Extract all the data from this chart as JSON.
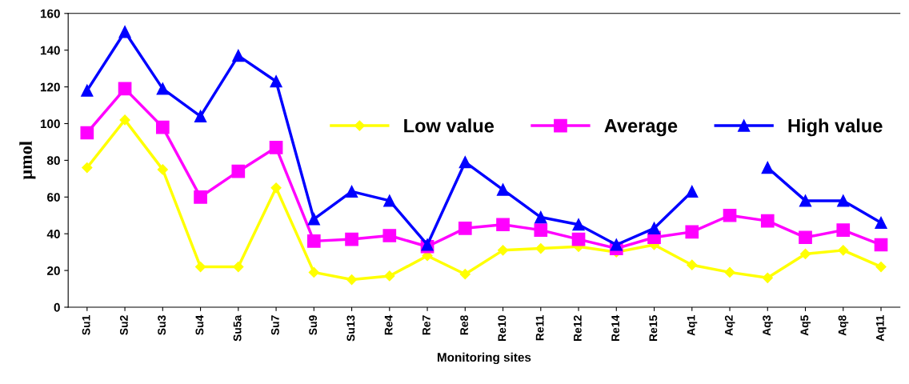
{
  "chart_data": {
    "type": "line",
    "xlabel": "Monitoring sites",
    "ylabel": "µmol",
    "categories": [
      "Su1",
      "Su2",
      "Su3",
      "Su4",
      "Su5a",
      "Su7",
      "Su9",
      "Su13",
      "Re4",
      "Re7",
      "Re8",
      "Re10",
      "Re11",
      "Re12",
      "Re14",
      "Re15",
      "Aq1",
      "Aq2",
      "Aq3",
      "Aq5",
      "Aq8",
      "Aq11"
    ],
    "series": [
      {
        "name": "Low value",
        "color": "#ffff00",
        "marker": "diamond",
        "values": [
          76,
          102,
          75,
          22,
          22,
          65,
          19,
          15,
          17,
          28,
          18,
          31,
          32,
          33,
          30,
          34,
          23,
          19,
          16,
          29,
          31,
          22
        ]
      },
      {
        "name": "Average",
        "color": "#ff00ff",
        "marker": "square",
        "values": [
          95,
          119,
          98,
          60,
          74,
          87,
          36,
          37,
          39,
          33,
          43,
          45,
          42,
          37,
          32,
          38,
          41,
          50,
          47,
          38,
          42,
          34
        ]
      },
      {
        "name": "High value",
        "color": "#0000ff",
        "marker": "triangle",
        "values": [
          118,
          150,
          119,
          104,
          137,
          123,
          48,
          63,
          58,
          34,
          79,
          64,
          49,
          45,
          34,
          43,
          63,
          null,
          76,
          58,
          58,
          46
        ]
      }
    ],
    "ylim": [
      0,
      160
    ],
    "yticks": [
      0,
      20,
      40,
      60,
      80,
      100,
      120,
      140,
      160
    ],
    "grid": false,
    "legend": "top right"
  }
}
